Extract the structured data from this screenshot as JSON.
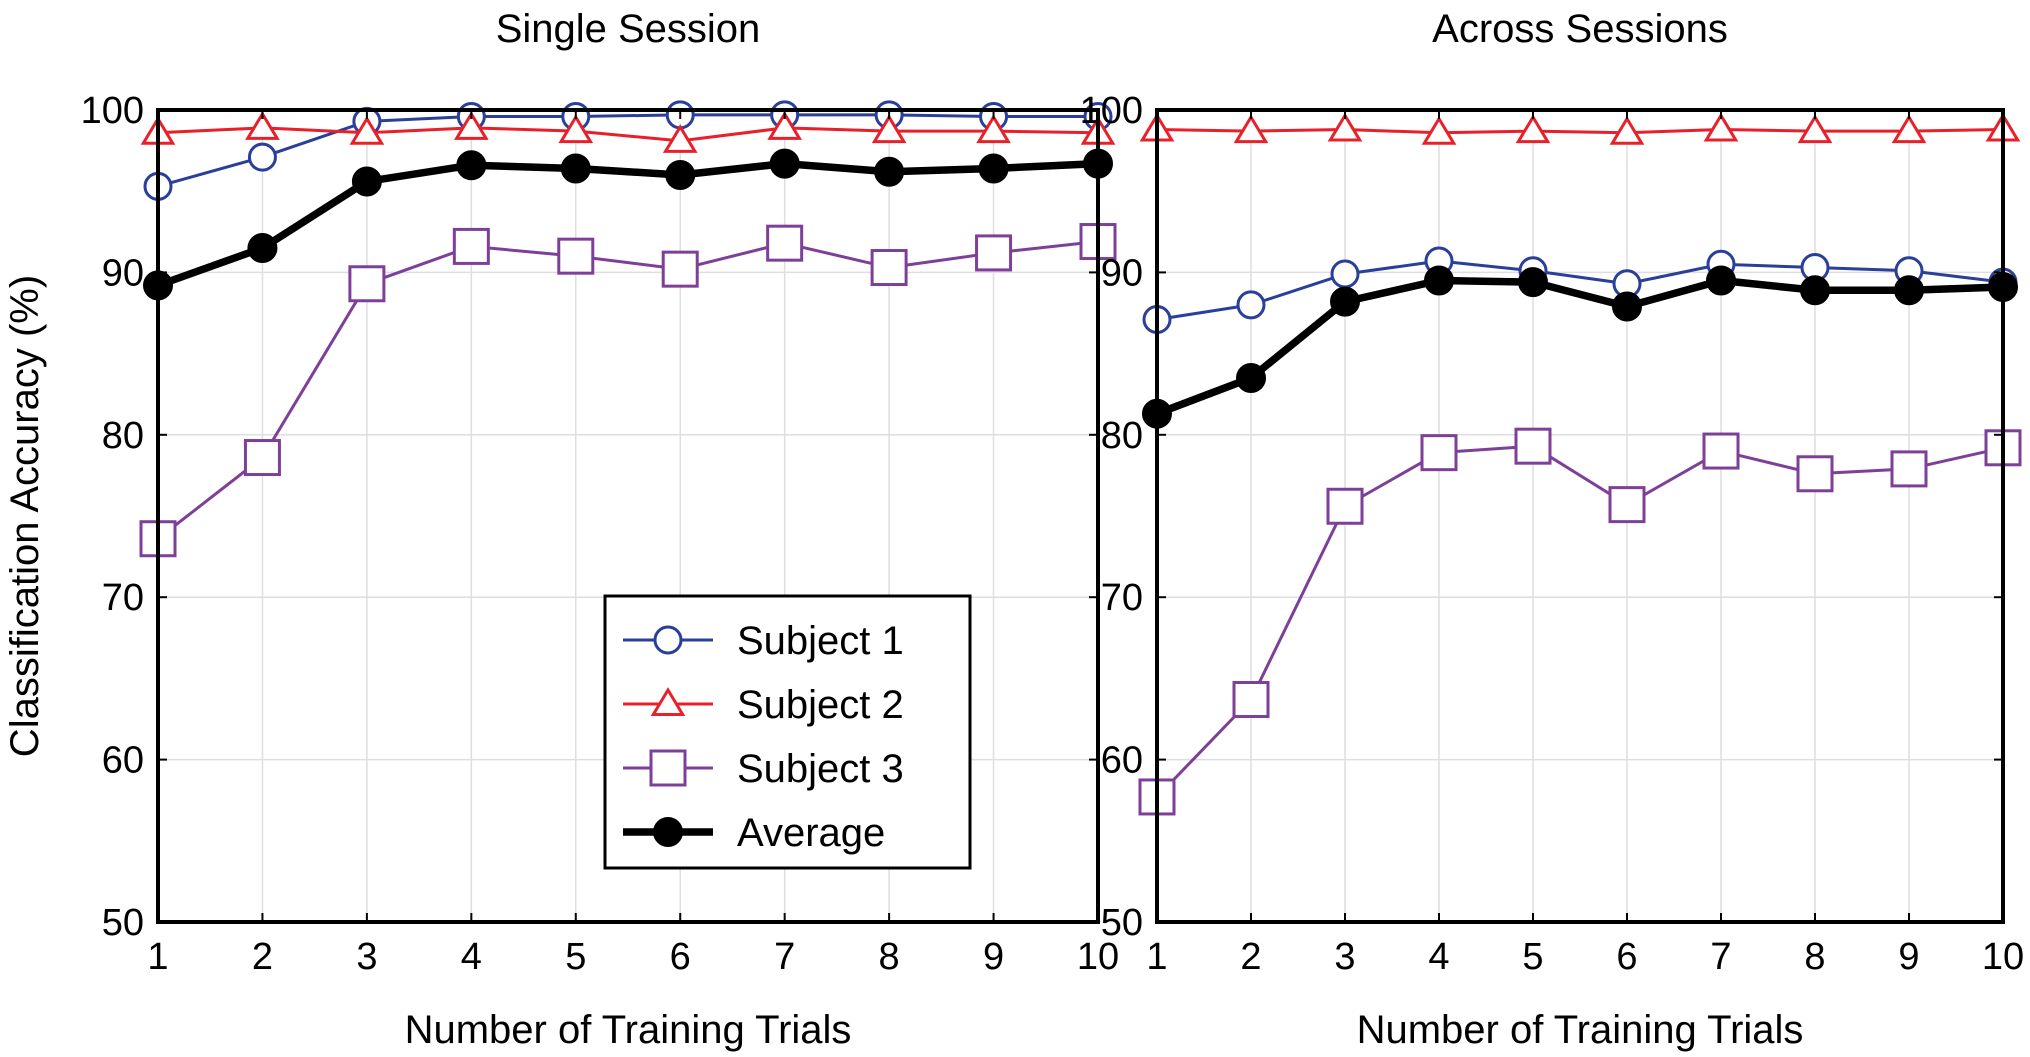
{
  "chart_data": [
    {
      "type": "line",
      "title": "Single Session",
      "xlabel": "Number of Training Trials",
      "ylabel": "Classification Accuracy (%)",
      "x": [
        1,
        2,
        3,
        4,
        5,
        6,
        7,
        8,
        9,
        10
      ],
      "xlim": [
        1,
        10
      ],
      "ylim": [
        50,
        100
      ],
      "xticks": [
        "1",
        "2",
        "3",
        "4",
        "5",
        "6",
        "7",
        "8",
        "9",
        "10"
      ],
      "yticks": [
        "50",
        "60",
        "70",
        "80",
        "90",
        "100"
      ],
      "grid": true,
      "legend_position": "bottom-right",
      "series": [
        {
          "name": "Subject 1",
          "color": "#2a3f9a",
          "marker": "circle",
          "values": [
            95.3,
            97.1,
            99.3,
            99.6,
            99.6,
            99.7,
            99.7,
            99.7,
            99.6,
            99.6
          ]
        },
        {
          "name": "Subject 2",
          "color": "#e8202a",
          "marker": "triangle",
          "values": [
            98.6,
            98.9,
            98.6,
            98.9,
            98.7,
            98.1,
            98.9,
            98.7,
            98.7,
            98.6
          ]
        },
        {
          "name": "Subject 3",
          "color": "#7d3f98",
          "marker": "square",
          "values": [
            73.6,
            78.6,
            89.3,
            91.6,
            91.0,
            90.2,
            91.8,
            90.3,
            91.2,
            91.9
          ]
        },
        {
          "name": "Average",
          "color": "#000000",
          "marker": "filled-circle",
          "values": [
            89.2,
            91.5,
            95.6,
            96.6,
            96.4,
            96.0,
            96.7,
            96.2,
            96.4,
            96.7
          ]
        }
      ]
    },
    {
      "type": "line",
      "title": "Across Sessions",
      "xlabel": "Number of Training Trials",
      "ylabel": "",
      "x": [
        1,
        2,
        3,
        4,
        5,
        6,
        7,
        8,
        9,
        10
      ],
      "xlim": [
        1,
        10
      ],
      "ylim": [
        50,
        100
      ],
      "xticks": [
        "1",
        "2",
        "3",
        "4",
        "5",
        "6",
        "7",
        "8",
        "9",
        "10"
      ],
      "yticks": [
        "50",
        "60",
        "70",
        "80",
        "90",
        "100"
      ],
      "grid": true,
      "series": [
        {
          "name": "Subject 1",
          "color": "#2a3f9a",
          "marker": "circle",
          "values": [
            87.1,
            88.0,
            89.9,
            90.7,
            90.1,
            89.3,
            90.5,
            90.3,
            90.1,
            89.4
          ]
        },
        {
          "name": "Subject 2",
          "color": "#e8202a",
          "marker": "triangle",
          "values": [
            98.8,
            98.7,
            98.8,
            98.6,
            98.7,
            98.6,
            98.8,
            98.7,
            98.7,
            98.8
          ]
        },
        {
          "name": "Subject 3",
          "color": "#7d3f98",
          "marker": "square",
          "values": [
            57.7,
            63.7,
            75.6,
            78.9,
            79.3,
            75.7,
            79.0,
            77.6,
            77.9,
            79.2
          ]
        },
        {
          "name": "Average",
          "color": "#000000",
          "marker": "filled-circle",
          "values": [
            81.3,
            83.5,
            88.2,
            89.5,
            89.4,
            87.9,
            89.5,
            88.9,
            88.9,
            89.1
          ]
        }
      ]
    }
  ]
}
